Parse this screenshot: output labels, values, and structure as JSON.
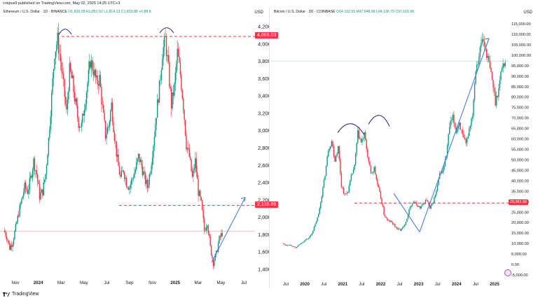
{
  "publish_line": "crispus9 published on TradingView.com, May 02, 2025 14:25 UTC+3",
  "footer": {
    "brand": "TradingView"
  },
  "left": {
    "symbol": "Ethereum / U.S. Dollar · 1D · BINANCE",
    "ohlc": "O1,839.28 H1,851.52 L1,814.13 C1,833.88 +0.88 K",
    "currency": "USD",
    "price_axis": [
      "4,200.00",
      "4,000.00",
      "3,800.00",
      "3,600.00",
      "3,400.00",
      "3,200.00",
      "3,000.00",
      "2,800.00",
      "2,600.00",
      "2,400.00",
      "2,200.00",
      "2,000.00",
      "1,800.00",
      "1,600.00",
      "1,400.00"
    ],
    "price_values": [
      4200,
      4000,
      3800,
      3600,
      3400,
      3200,
      3000,
      2800,
      2600,
      2400,
      2200,
      2000,
      1800,
      1600,
      1400
    ],
    "time_axis": [
      "Nov",
      "2024",
      "Mar",
      "May",
      "Jul",
      "Sep",
      "Nov",
      "2025",
      "Mar",
      "May",
      "Jul"
    ],
    "time_bold": [
      false,
      true,
      false,
      false,
      false,
      false,
      false,
      true,
      false,
      false,
      false
    ],
    "resistance_tag": "4,086.03",
    "resistance_value": 4086.03,
    "support_tag": "2,136.86",
    "support_value": 2136.86,
    "target_value": 2230,
    "cursor_line": 1840,
    "series": [
      1850,
      1780,
      1650,
      1720,
      1880,
      2050,
      2200,
      2350,
      2300,
      2450,
      2650,
      2500,
      2250,
      2300,
      2500,
      2900,
      3400,
      3900,
      4050,
      3800,
      3500,
      3200,
      3700,
      3550,
      3300,
      3100,
      3050,
      3300,
      3550,
      3800,
      3700,
      3550,
      3600,
      3250,
      2950,
      3050,
      3300,
      2950,
      2650,
      2450,
      2550,
      2400,
      2350,
      2450,
      2550,
      2700,
      2600,
      2450,
      2350,
      2550,
      2850,
      3200,
      3500,
      3900,
      4050,
      3700,
      3300,
      3500,
      3900,
      3650,
      3300,
      2850,
      2700,
      2450,
      2650,
      2300,
      2150,
      1850,
      1950,
      1650,
      1480,
      1580,
      1750,
      1820
    ]
  },
  "right": {
    "symbol": "Bitcoin / U.S. Dollar · 3D · COINBASE",
    "ohlc": "O94,162.55 H97,548.99 L94,136.79 C97,101.08",
    "currency": "USD",
    "price_axis": [
      "115,000.00",
      "110,000.00",
      "105,000.00",
      "100,000.00",
      "95,000.00",
      "90,000.00",
      "85,000.00",
      "80,000.00",
      "75,000.00",
      "70,000.00",
      "65,000.00",
      "60,000.00",
      "55,000.00",
      "50,000.00",
      "45,000.00",
      "40,000.00",
      "35,000.00",
      "30,000.00",
      "25,000.00",
      "20,000.00",
      "15,000.00",
      "10,000.00",
      "5,000.00",
      "0.00",
      "-5,000.00"
    ],
    "price_values": [
      115000,
      110000,
      105000,
      100000,
      95000,
      90000,
      85000,
      80000,
      75000,
      70000,
      65000,
      60000,
      55000,
      50000,
      45000,
      40000,
      35000,
      30000,
      25000,
      20000,
      15000,
      10000,
      5000,
      0,
      -5000
    ],
    "time_axis": [
      "Jul",
      "2020",
      "Jul",
      "2021",
      "Jul",
      "2022",
      "Jul",
      "2023",
      "Jul",
      "2024",
      "Jul",
      "2025"
    ],
    "time_bold": [
      false,
      true,
      false,
      true,
      false,
      true,
      false,
      true,
      false,
      true,
      false,
      true
    ],
    "support_tag": "29,361.99",
    "support_value": 29361.99,
    "series": [
      10000,
      9200,
      9500,
      8800,
      7800,
      9300,
      10500,
      11800,
      12500,
      15000,
      19000,
      24000,
      33000,
      43000,
      55000,
      59000,
      50000,
      56000,
      38000,
      33000,
      35000,
      42000,
      47000,
      63000,
      58000,
      62000,
      52000,
      43000,
      46000,
      38000,
      32000,
      24000,
      21000,
      20500,
      19000,
      17000,
      16500,
      18000,
      22000,
      28000,
      30000,
      28500,
      27000,
      29000,
      31000,
      26500,
      30000,
      35000,
      43000,
      45000,
      52000,
      66000,
      70000,
      64000,
      68000,
      61000,
      57000,
      65000,
      72000,
      94000,
      100000,
      108000,
      103000,
      96000,
      88000,
      78000,
      84000,
      95000,
      97000
    ]
  }
}
